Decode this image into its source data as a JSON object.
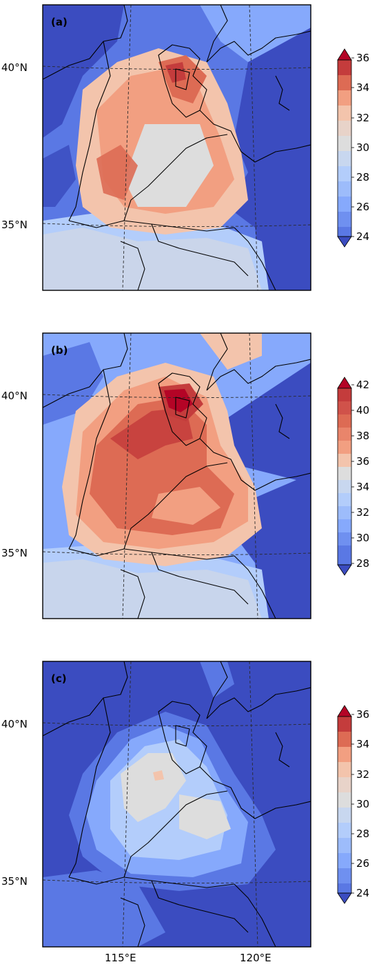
{
  "colors": {
    "deep_blue": "#3b4cc0",
    "blue": "#5a78e4",
    "light_blue": "#86a9fc",
    "pale_blue": "#b3cdfb",
    "neutral": "#dddddd",
    "pale_red": "#f3c4ac",
    "light_red": "#f29f81",
    "red": "#dd6b54",
    "dark_red": "#c43c3c",
    "crimson": "#b40426"
  },
  "axes": {
    "lat_labels": [
      "40°N",
      "35°N"
    ],
    "lon_labels": [
      "115°E",
      "120°E"
    ]
  },
  "panels": [
    {
      "label": "(a)",
      "colorbar_ticks": [
        "36",
        "34",
        "32",
        "30",
        "28",
        "26",
        "24"
      ]
    },
    {
      "label": "(b)",
      "colorbar_ticks": [
        "42",
        "40",
        "38",
        "36",
        "34",
        "32",
        "30",
        "28"
      ]
    },
    {
      "label": "(c)",
      "colorbar_ticks": [
        "36",
        "34",
        "32",
        "30",
        "28",
        "26",
        "24"
      ]
    }
  ]
}
